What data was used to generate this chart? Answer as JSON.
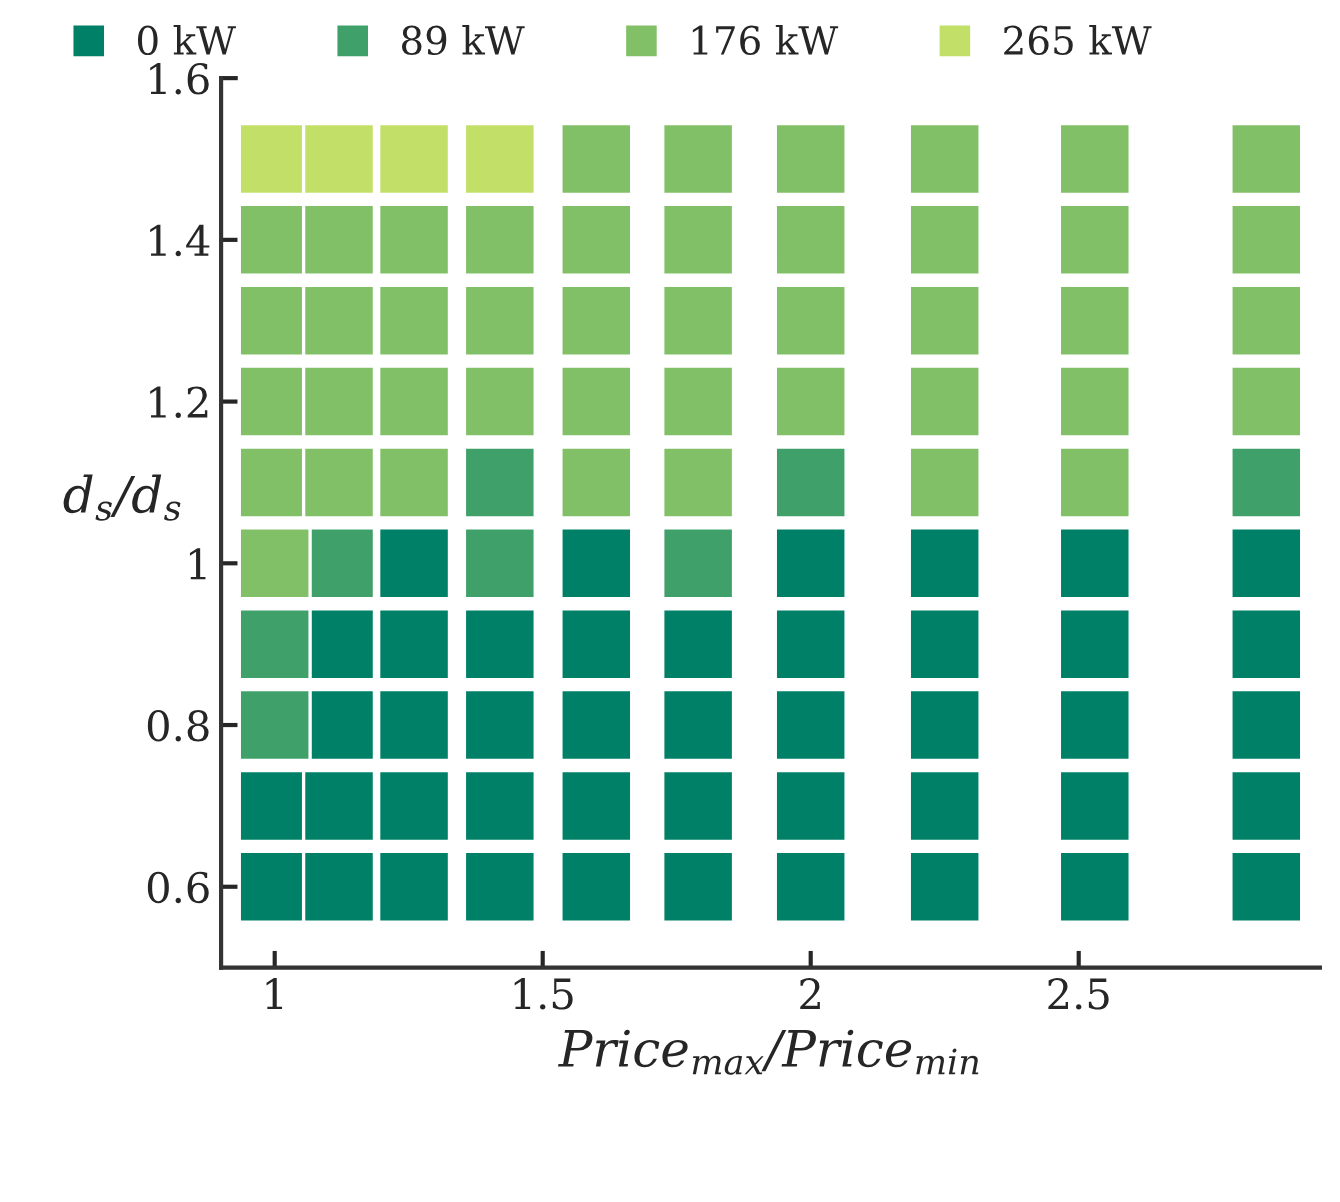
{
  "chart_data": {
    "type": "scatter",
    "marker": "square",
    "legend": "top",
    "grid": false,
    "xlabel": "Price$_{max}$/Price$_{min}$",
    "ylabel": "d$_{s}$/d$_{s}$",
    "xlim": [
      0.9,
      2.95
    ],
    "ylim": [
      0.5,
      1.6
    ],
    "xticks": [
      1,
      1.5,
      2,
      2.5
    ],
    "yticks": [
      0.6,
      0.8,
      1,
      1.2,
      1.4,
      1.6
    ],
    "series": [
      {
        "name": "0 kW",
        "color": "#008066",
        "x": [
          1.0,
          1.0,
          1.12,
          1.12,
          1.12,
          1.12,
          1.26,
          1.26,
          1.26,
          1.26,
          1.26,
          1.42,
          1.42,
          1.42,
          1.42,
          1.6,
          1.6,
          1.6,
          1.6,
          1.6,
          1.79,
          1.79,
          1.79,
          1.79,
          2.0,
          2.0,
          2.0,
          2.0,
          2.0,
          2.25,
          2.25,
          2.25,
          2.25,
          2.25,
          2.53,
          2.53,
          2.53,
          2.53,
          2.53,
          2.85,
          2.85,
          2.85,
          2.85,
          2.85
        ],
        "values": [
          0.7,
          0.6,
          0.9,
          0.8,
          0.7,
          0.6,
          1.0,
          0.9,
          0.8,
          0.7,
          0.6,
          0.9,
          0.8,
          0.7,
          0.6,
          1.0,
          0.9,
          0.8,
          0.7,
          0.6,
          0.9,
          0.8,
          0.7,
          0.6,
          1.0,
          0.9,
          0.8,
          0.7,
          0.6,
          1.0,
          0.9,
          0.8,
          0.7,
          0.6,
          1.0,
          0.9,
          0.8,
          0.7,
          0.6,
          1.0,
          0.9,
          0.8,
          0.7,
          0.6
        ]
      },
      {
        "name": "89 kW",
        "color": "#40a06a",
        "x": [
          1.0,
          1.0,
          1.12,
          1.42,
          1.42,
          1.79,
          2.0,
          2.85
        ],
        "values": [
          0.9,
          0.8,
          1.0,
          1.1,
          1.0,
          1.0,
          1.1,
          1.1
        ]
      },
      {
        "name": "176 kW",
        "color": "#82c068",
        "x": [
          1.0,
          1.0,
          1.0,
          1.0,
          1.0,
          1.12,
          1.12,
          1.12,
          1.12,
          1.26,
          1.26,
          1.26,
          1.26,
          1.42,
          1.42,
          1.42,
          1.6,
          1.6,
          1.6,
          1.6,
          1.6,
          1.79,
          1.79,
          1.79,
          1.79,
          1.79,
          2.0,
          2.0,
          2.0,
          2.0,
          2.25,
          2.25,
          2.25,
          2.25,
          2.25,
          2.53,
          2.53,
          2.53,
          2.53,
          2.53,
          2.85,
          2.85,
          2.85,
          2.85
        ],
        "values": [
          1.4,
          1.3,
          1.2,
          1.1,
          1.0,
          1.4,
          1.3,
          1.2,
          1.1,
          1.4,
          1.3,
          1.2,
          1.1,
          1.4,
          1.3,
          1.2,
          1.5,
          1.4,
          1.3,
          1.2,
          1.1,
          1.5,
          1.4,
          1.3,
          1.2,
          1.1,
          1.5,
          1.4,
          1.3,
          1.2,
          1.5,
          1.4,
          1.3,
          1.2,
          1.1,
          1.5,
          1.4,
          1.3,
          1.2,
          1.1,
          1.5,
          1.4,
          1.3,
          1.2
        ]
      },
      {
        "name": "265 kW",
        "color": "#c2e068",
        "x": [
          1.0,
          1.12,
          1.26,
          1.42
        ],
        "values": [
          1.5,
          1.5,
          1.5,
          1.5
        ]
      }
    ]
  }
}
